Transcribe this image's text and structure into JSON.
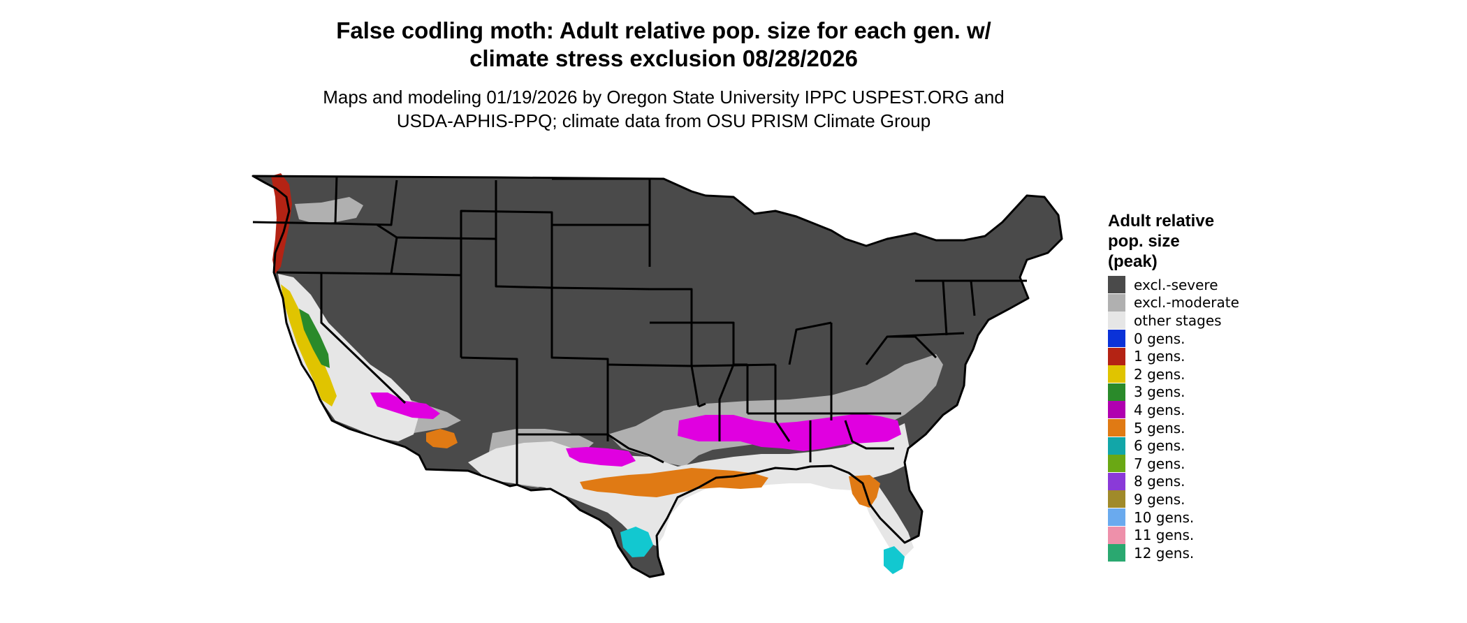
{
  "header": {
    "title": "False codling moth: Adult relative pop. size for each gen. w/\nclimate stress exclusion 08/28/2026",
    "subtitle": "Maps and modeling 01/19/2026 by Oregon State University IPPC USPEST.ORG and\nUSDA-APHIS-PPQ; climate data from OSU PRISM Climate Group"
  },
  "legend": {
    "title": "Adult relative\npop. size\n(peak)",
    "items": [
      {
        "label": "excl.-severe",
        "color": "#4a4a4a"
      },
      {
        "label": "excl.-moderate",
        "color": "#b0b0b0"
      },
      {
        "label": "other stages",
        "color": "#e6e6e6"
      },
      {
        "label": "0 gens.",
        "color": "#0a32d8"
      },
      {
        "label": "1 gens.",
        "color": "#b42314"
      },
      {
        "label": "2 gens.",
        "color": "#e0c400"
      },
      {
        "label": "3 gens.",
        "color": "#2a8a2a"
      },
      {
        "label": "4 gens.",
        "color": "#b000b0"
      },
      {
        "label": "5 gens.",
        "color": "#e07a14"
      },
      {
        "label": "6 gens.",
        "color": "#12a6a8"
      },
      {
        "label": "7 gens.",
        "color": "#6aa814"
      },
      {
        "label": "8 gens.",
        "color": "#8a3ad8"
      },
      {
        "label": "9 gens.",
        "color": "#a08a2a"
      },
      {
        "label": "10 gens.",
        "color": "#6aaaee"
      },
      {
        "label": "11 gens.",
        "color": "#ee90aa"
      },
      {
        "label": "12 gens.",
        "color": "#2aa870"
      }
    ]
  },
  "map": {
    "colors": {
      "severe": "#4a4a4a",
      "moderate": "#b0b0b0",
      "other": "#e6e6e6",
      "magenta": "#e000e0",
      "orange": "#e07a14",
      "cyan": "#12c8d0",
      "red": "#b42314",
      "yellow": "#e0c400",
      "green": "#2a8a2a",
      "border": "#000000"
    }
  }
}
